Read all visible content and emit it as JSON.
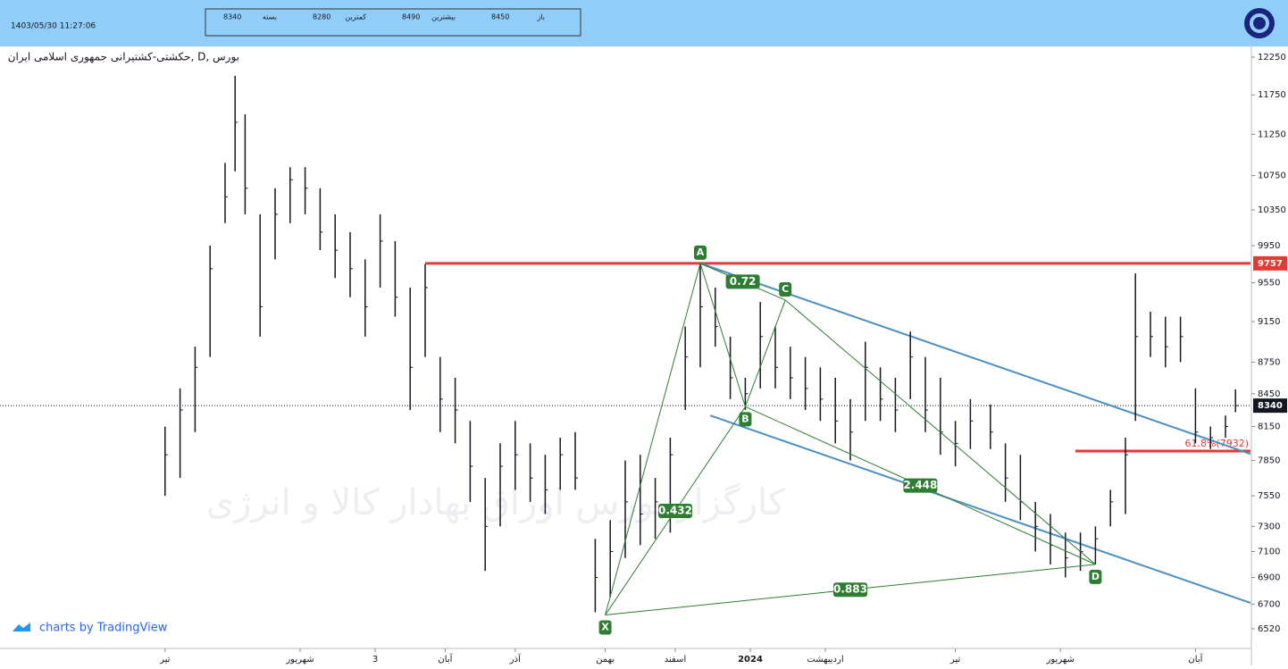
{
  "header": {
    "datetime": "1403/05/30 11:27:06",
    "quote": [
      {
        "value": 8340,
        "label": "بسته"
      },
      {
        "value": 8280,
        "label": "کمترین"
      },
      {
        "value": 8490,
        "label": "بیشترین"
      },
      {
        "value": 8450,
        "label": "باز"
      }
    ]
  },
  "chart_data": {
    "type": "ohlc",
    "title": "حکشتی-کشتیرانی جمهوری اسلامی ایران, D, بورس",
    "watermark": "کارگزار بورس اوراق بهادار کالا و انرژی",
    "credit": "charts by TradingView",
    "log_scale": true,
    "color": "#131722",
    "xlim": [
      0,
      250
    ],
    "xticks": [
      {
        "value": 33,
        "label": "تیر"
      },
      {
        "value": 60,
        "label": "شهریور"
      },
      {
        "value": 75,
        "label": "3"
      },
      {
        "value": 89,
        "label": "آبان"
      },
      {
        "value": 103,
        "label": "آذر"
      },
      {
        "value": 121,
        "label": "بهمن"
      },
      {
        "value": 135,
        "label": "اسفند"
      },
      {
        "value": 150,
        "label": "2024"
      },
      {
        "value": 165,
        "label": "اردیبهشت"
      },
      {
        "value": 191,
        "label": "تیر"
      },
      {
        "value": 212,
        "label": "شهریور"
      },
      {
        "value": 239,
        "label": "آبان"
      }
    ],
    "ylim": [
      6355,
      12395
    ],
    "yticks": [
      6520,
      6700,
      6900,
      7100,
      7300,
      7550,
      7850,
      8150,
      8450,
      8750,
      9150,
      9550,
      9950,
      10350,
      10750,
      11250,
      11750,
      12250
    ],
    "bars": {
      "x": [
        33,
        36,
        39,
        42,
        45,
        47,
        49,
        52,
        55,
        58,
        61,
        64,
        67,
        70,
        73,
        76,
        79,
        82,
        85,
        88,
        91,
        94,
        97,
        100,
        103,
        106,
        109,
        112,
        115,
        119,
        122,
        125,
        128,
        131,
        134,
        137,
        140,
        143,
        146,
        149,
        152,
        155,
        158,
        161,
        164,
        167,
        170,
        173,
        176,
        179,
        182,
        185,
        188,
        191,
        194,
        198,
        201,
        204,
        207,
        210,
        213,
        216,
        219,
        222,
        225,
        227,
        230,
        233,
        236,
        239,
        242,
        245,
        247
      ],
      "high": [
        8150,
        8500,
        8900,
        9950,
        10900,
        12000,
        11500,
        10300,
        10600,
        10850,
        10850,
        10600,
        10300,
        10100,
        9800,
        10300,
        10000,
        9500,
        9750,
        8800,
        8600,
        8200,
        7700,
        8000,
        8200,
        8000,
        7900,
        8050,
        8100,
        7200,
        7350,
        7850,
        7900,
        7700,
        8050,
        9100,
        9757,
        9500,
        9000,
        8600,
        9350,
        9100,
        8900,
        8800,
        8700,
        8600,
        8400,
        8950,
        8700,
        8600,
        9050,
        8800,
        8600,
        8200,
        8400,
        8350,
        8000,
        7900,
        7500,
        7400,
        7250,
        7250,
        7300,
        7600,
        8050,
        9650,
        9250,
        9200,
        9200,
        8500,
        8150,
        8250,
        8490
      ],
      "low": [
        7550,
        7700,
        8100,
        8800,
        10200,
        10800,
        10300,
        9000,
        9800,
        10200,
        10300,
        9900,
        9600,
        9400,
        9000,
        9500,
        9200,
        8300,
        8800,
        8100,
        8000,
        7500,
        6950,
        7300,
        7600,
        7500,
        7400,
        7600,
        7600,
        6640,
        6750,
        7050,
        7150,
        7200,
        7250,
        8300,
        8700,
        8900,
        8400,
        8300,
        8500,
        8500,
        8400,
        8300,
        8200,
        8000,
        7850,
        8200,
        8200,
        8100,
        8400,
        8100,
        7900,
        7800,
        7950,
        7950,
        7500,
        7350,
        7100,
        7000,
        6900,
        6950,
        7000,
        7300,
        7400,
        8200,
        8800,
        8700,
        8750,
        8000,
        7950,
        8050,
        8280
      ],
      "close": [
        7900,
        8300,
        8700,
        9700,
        10500,
        11400,
        10600,
        9300,
        10300,
        10700,
        10600,
        10100,
        9900,
        9700,
        9300,
        10000,
        9400,
        8700,
        9500,
        8400,
        8300,
        7800,
        7300,
        7800,
        7900,
        7700,
        7600,
        7900,
        7700,
        6900,
        7100,
        7500,
        7400,
        7500,
        7900,
        8800,
        9300,
        9100,
        8600,
        8450,
        9000,
        8700,
        8600,
        8500,
        8400,
        8200,
        8100,
        8700,
        8400,
        8300,
        8800,
        8300,
        8100,
        8000,
        8200,
        8100,
        7700,
        7500,
        7300,
        7150,
        7050,
        7100,
        7200,
        7500,
        7900,
        9000,
        9000,
        8900,
        9000,
        8100,
        8050,
        8150,
        8340
      ]
    },
    "last_price": 8340,
    "levels": [
      {
        "value": 9757,
        "from": 85,
        "color": "#e53935"
      },
      {
        "value": 7932,
        "from": 215,
        "color": "#e53935",
        "label": "61.8%(7932)"
      }
    ],
    "channels": [
      {
        "x": [
          140,
          250
        ],
        "y": [
          9757,
          7907
        ],
        "color": "#4a90c2"
      },
      {
        "x": [
          142,
          250
        ],
        "y": [
          8250,
          6709
        ],
        "color": "#4a90c2"
      }
    ],
    "pattern": {
      "color": "#2e7d32",
      "points": [
        {
          "label": "X",
          "x": 121,
          "y": 6620
        },
        {
          "label": "A",
          "x": 140,
          "y": 9757
        },
        {
          "label": "B",
          "x": 149,
          "y": 8330
        },
        {
          "label": "C",
          "x": 157,
          "y": 9370
        },
        {
          "label": "D",
          "x": 219,
          "y": 7000
        }
      ],
      "ratios": [
        "0.72",
        "0.432",
        "2.448",
        "0.883"
      ]
    }
  }
}
